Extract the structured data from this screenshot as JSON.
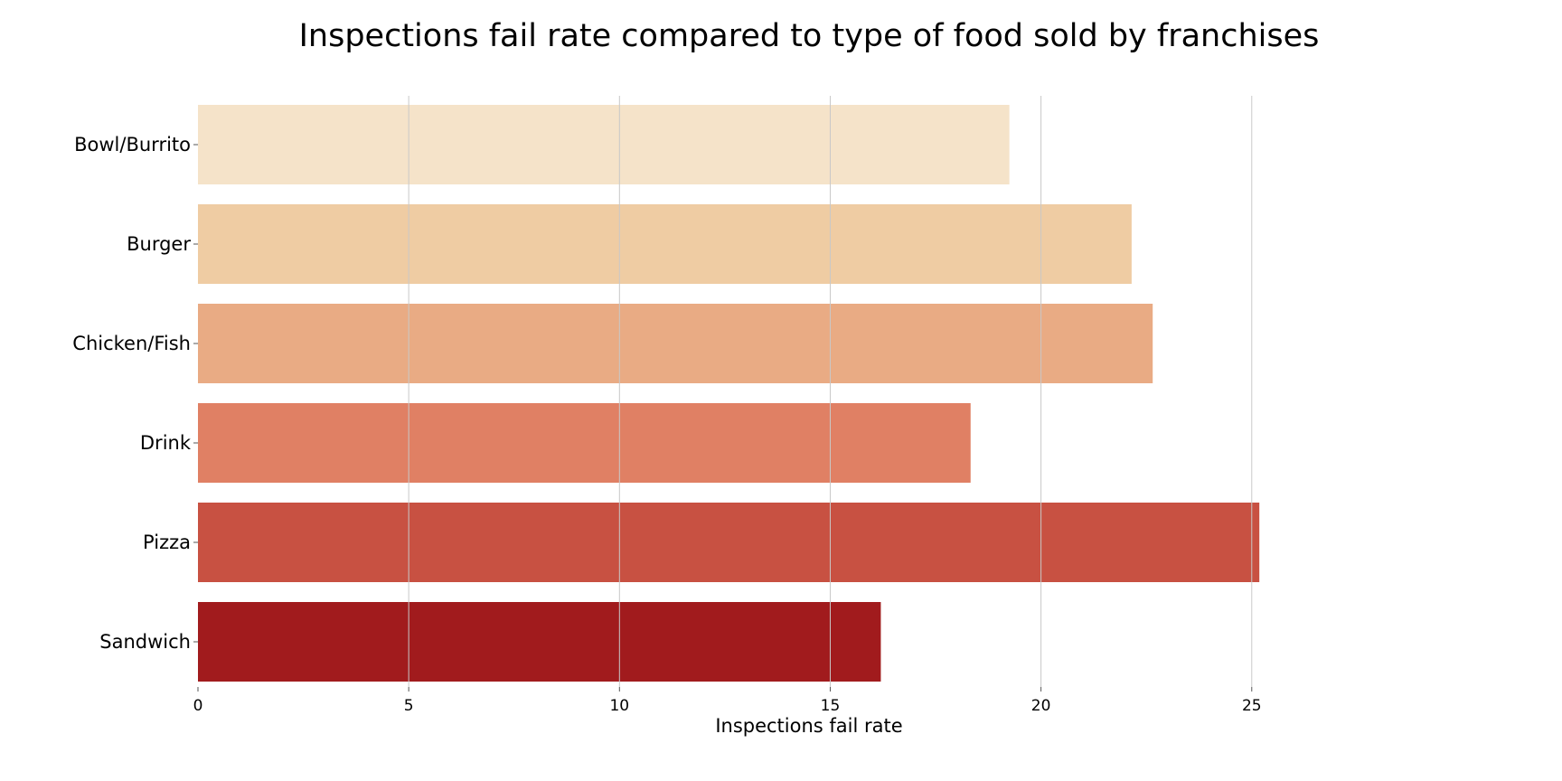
{
  "chart_data": {
    "type": "bar",
    "orientation": "horizontal",
    "title": "Inspections fail rate compared to type of food sold by franchises",
    "xlabel": "Inspections fail rate",
    "ylabel": "",
    "categories": [
      "Bowl/Burrito",
      "Burger",
      "Chicken/Fish",
      "Drink",
      "Pizza",
      "Sandwich"
    ],
    "values": [
      19.25,
      22.15,
      22.65,
      18.33,
      25.18,
      16.2
    ],
    "colors": [
      "#f5e3c9",
      "#efcca3",
      "#e9ab84",
      "#e08064",
      "#c85142",
      "#a11b1d"
    ],
    "xlim": [
      0,
      28.2
    ],
    "xticks": [
      0,
      5,
      10,
      15,
      20,
      25
    ],
    "xtick_labels": [
      "0",
      "5",
      "10",
      "15",
      "20",
      "25"
    ],
    "grid": "vertical"
  }
}
